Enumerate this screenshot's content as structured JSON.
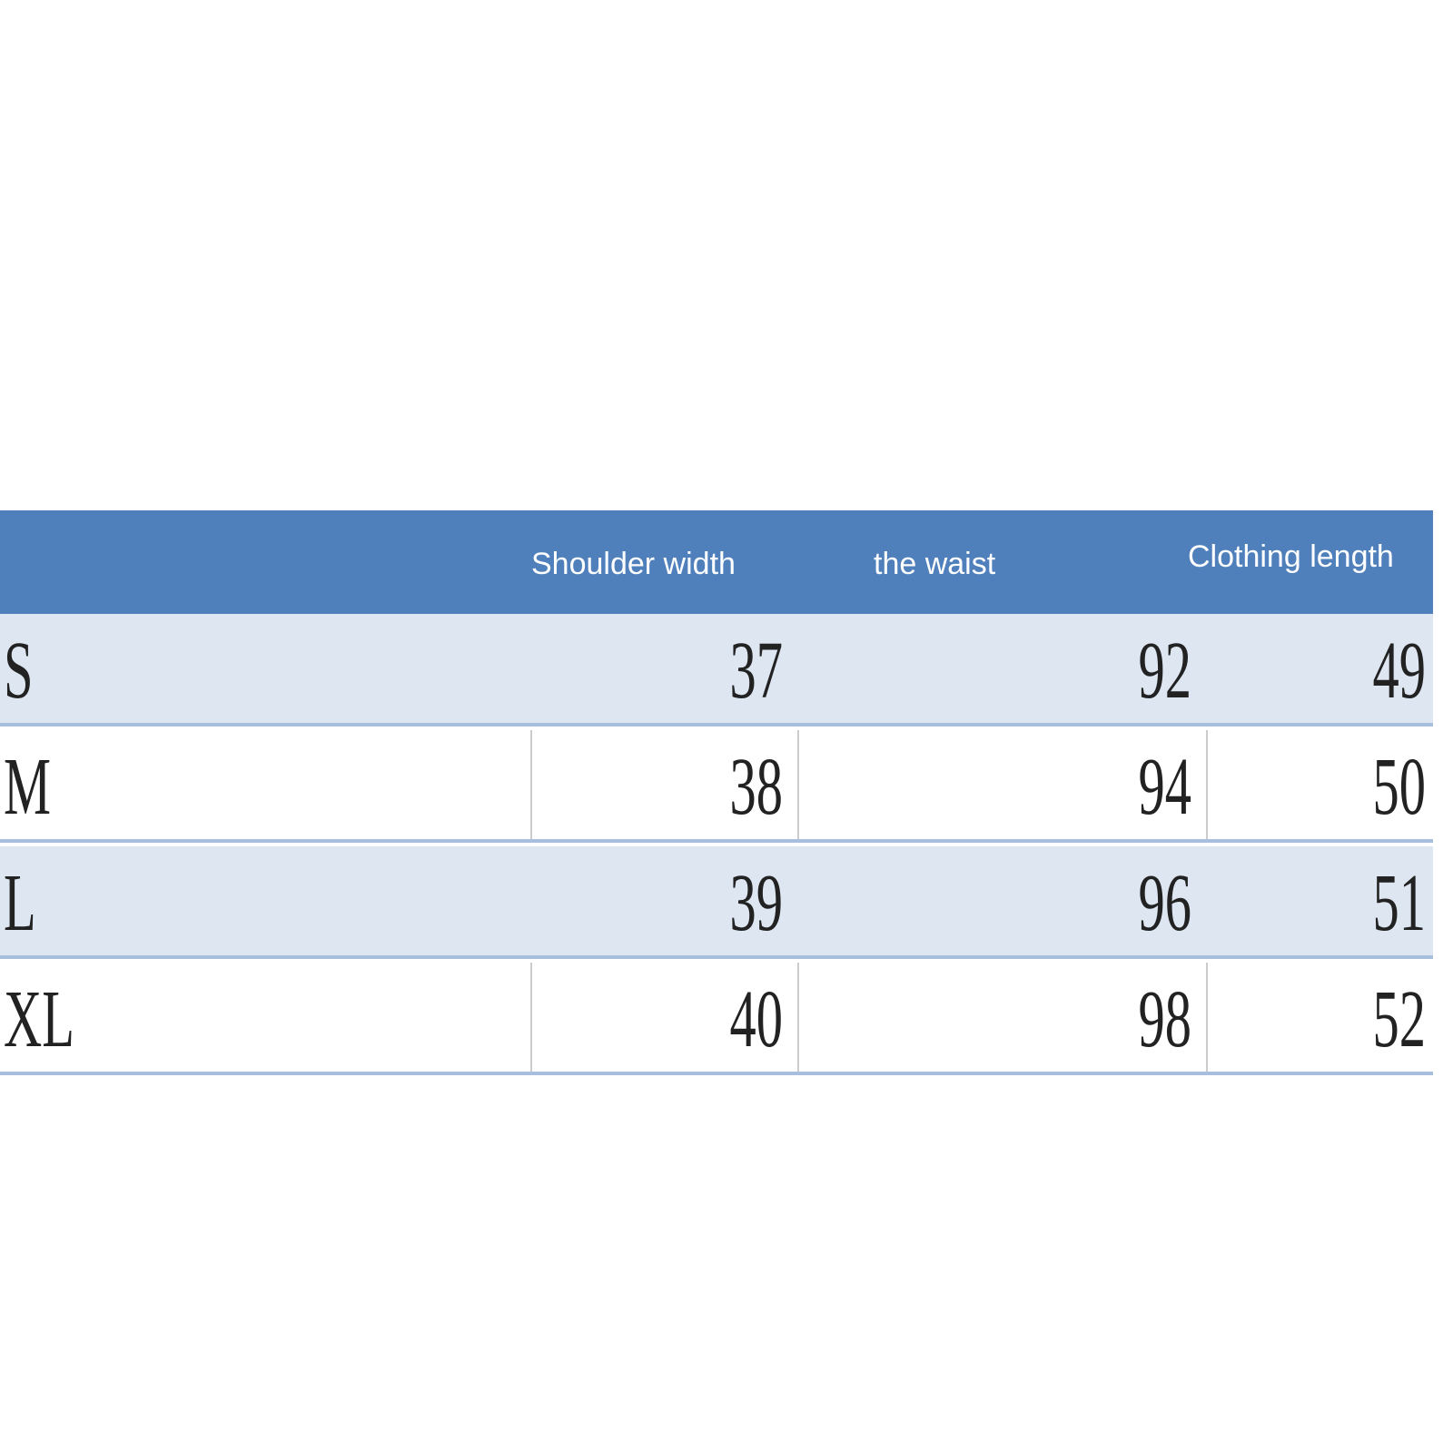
{
  "table": {
    "header": [
      null,
      "Shoulder width",
      "the waist",
      "Clothing length"
    ],
    "rows": [
      [
        "S",
        "37",
        "92",
        "49"
      ],
      [
        "M",
        "38",
        "94",
        "50"
      ],
      [
        "L",
        "39",
        "96",
        "51"
      ],
      [
        "XL",
        "40",
        "98",
        "52"
      ]
    ]
  }
}
